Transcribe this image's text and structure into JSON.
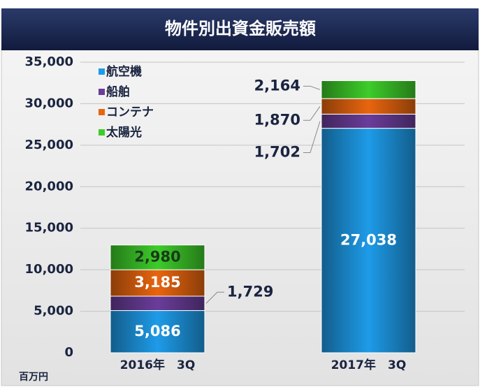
{
  "chart_data": {
    "type": "stacked_bar",
    "title": "物件別出資金販売額",
    "y_unit": "百万円",
    "categories": [
      "2016年　3Q",
      "2017年　3Q"
    ],
    "series": [
      {
        "name": "航空機",
        "color": "#1e9be8",
        "values": [
          5086,
          27038
        ],
        "value_labels": [
          "5,086",
          "27,038"
        ]
      },
      {
        "name": "船舶",
        "color": "#6a3d9a",
        "values": [
          1729,
          1702
        ],
        "value_labels": [
          "1,729",
          "1,702"
        ]
      },
      {
        "name": "コンテナ",
        "color": "#e8650f",
        "values": [
          3185,
          1870
        ],
        "value_labels": [
          "3,185",
          "1,870"
        ]
      },
      {
        "name": "太陽光",
        "color": "#3dcc2a",
        "values": [
          2980,
          2164
        ],
        "value_labels": [
          "2,980",
          "2,164"
        ]
      }
    ],
    "ylim": [
      0,
      35000
    ],
    "yticks": [
      {
        "value": 0,
        "label": "0"
      },
      {
        "value": 5000,
        "label": "5,000"
      },
      {
        "value": 10000,
        "label": "10,000"
      },
      {
        "value": 15000,
        "label": "15,000"
      },
      {
        "value": 20000,
        "label": "20,000"
      },
      {
        "value": 25000,
        "label": "25,000"
      },
      {
        "value": 30000,
        "label": "30,000"
      },
      {
        "value": 35000,
        "label": "35,000"
      }
    ],
    "grid": true,
    "legend": "upper left"
  }
}
